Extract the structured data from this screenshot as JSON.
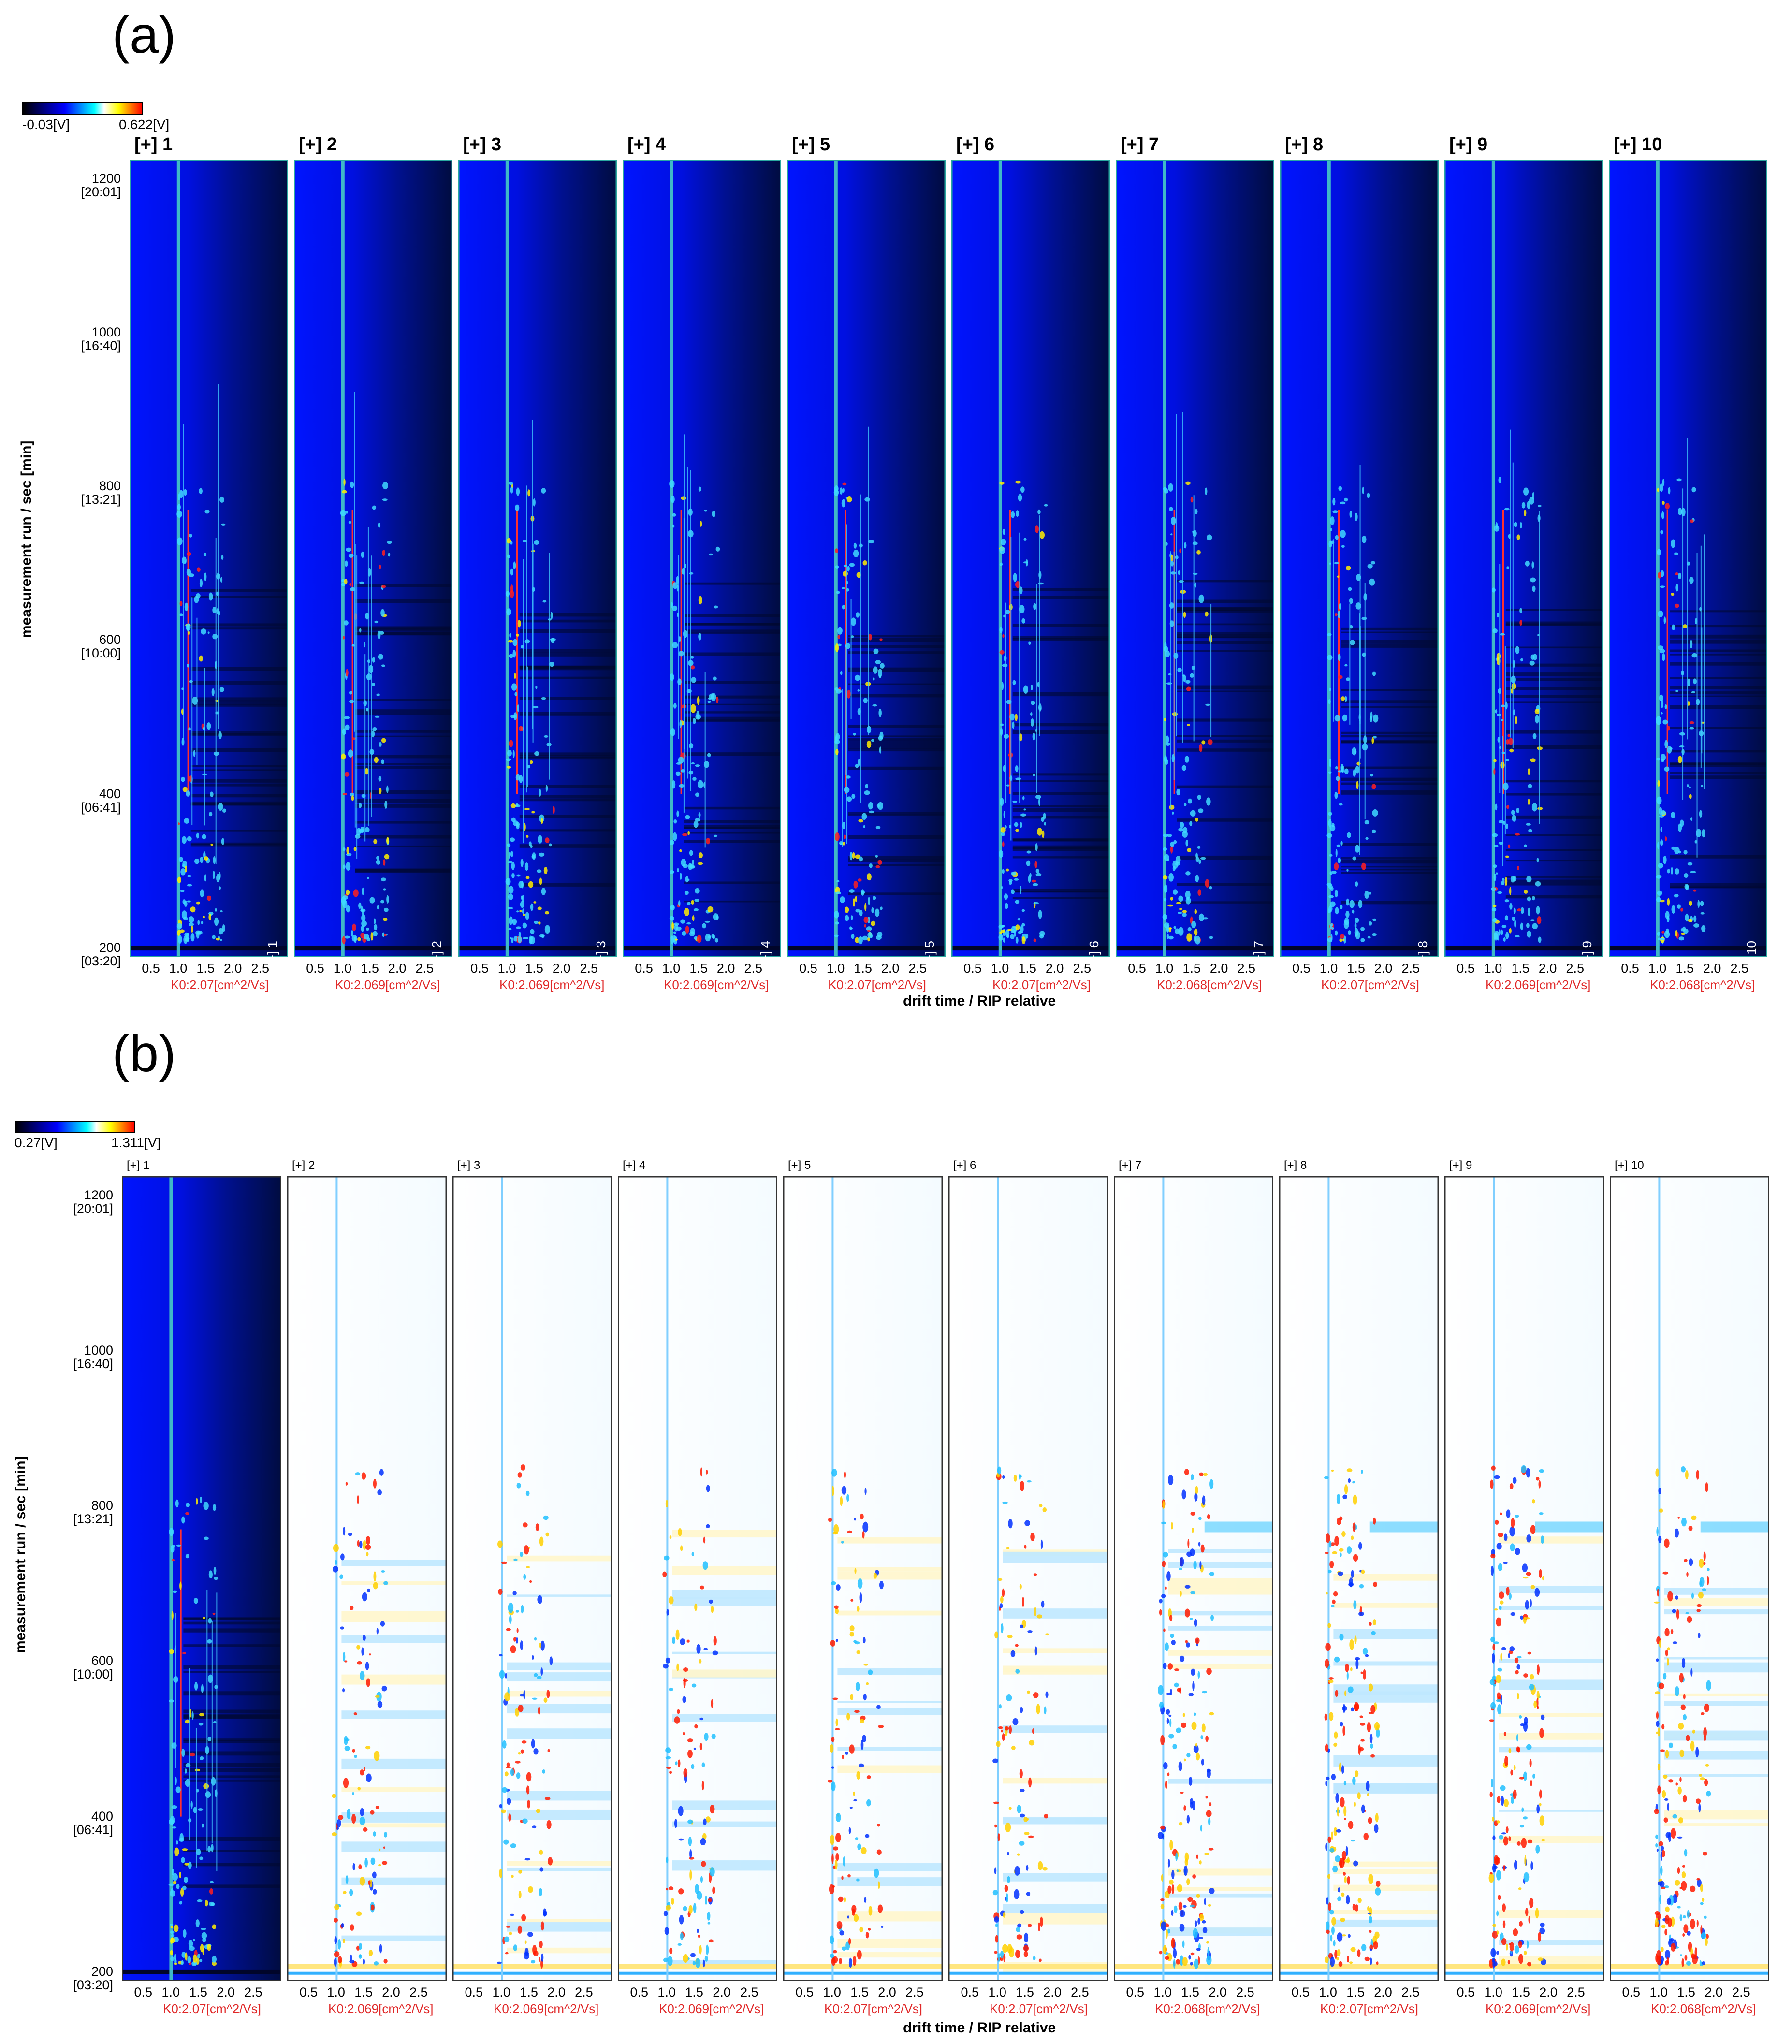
{
  "chart_data": [
    {
      "type": "heatmap",
      "panel_label": "(a)",
      "colorbar": {
        "min_label": "-0.03[V]",
        "max_label": "0.622[V]",
        "colors": [
          "#000000",
          "#0000ff",
          "#00ffff",
          "#ffffff",
          "#ffff00",
          "#ff0000"
        ]
      },
      "ylabel": "measurement run / sec [min]",
      "xlabel": "drift time / RIP relative",
      "yticks": [
        {
          "value": 1200,
          "label": "1200",
          "sub": "[20:01]"
        },
        {
          "value": 1000,
          "label": "1000",
          "sub": "[16:40]"
        },
        {
          "value": 800,
          "label": "800",
          "sub": "[13:21]"
        },
        {
          "value": 600,
          "label": "600",
          "sub": "[10:00]"
        },
        {
          "value": 400,
          "label": "400",
          "sub": "[06:41]"
        },
        {
          "value": 200,
          "label": "200",
          "sub": "[03:20]"
        }
      ],
      "xticks": [
        "0.5",
        "1.0",
        "1.5",
        "2.0",
        "2.5"
      ],
      "ylim": [
        188,
        1225
      ],
      "xlim": [
        0.1,
        3.0
      ],
      "samples": [
        {
          "title": "[+] 1",
          "corner": "[+] 1",
          "k0": "K0:2.07[cm^2/Vs]"
        },
        {
          "title": "[+] 2",
          "corner": "[+] 2",
          "k0": "K0:2.069[cm^2/Vs]"
        },
        {
          "title": "[+] 3",
          "corner": "[+] 3",
          "k0": "K0:2.069[cm^2/Vs]"
        },
        {
          "title": "[+] 4",
          "corner": "[+] 4",
          "k0": "K0:2.069[cm^2/Vs]"
        },
        {
          "title": "[+] 5",
          "corner": "[+] 5",
          "k0": "K0:2.07[cm^2/Vs]"
        },
        {
          "title": "[+] 6",
          "corner": "[+] 6",
          "k0": "K0:2.07[cm^2/Vs]"
        },
        {
          "title": "[+] 7",
          "corner": "[+] 7",
          "k0": "K0:2.068[cm^2/Vs]"
        },
        {
          "title": "[+] 8",
          "corner": "[+] 8",
          "k0": "K0:2.07[cm^2/Vs]"
        },
        {
          "title": "[+] 9",
          "corner": "[+] 9",
          "k0": "K0:2.069[cm^2/Vs]"
        },
        {
          "title": "[+] 10",
          "corner": "[+] 10",
          "k0": "K0:2.068[cm^2/Vs]"
        }
      ]
    },
    {
      "type": "heatmap",
      "panel_label": "(b)",
      "mode": "difference (sample 1 as reference)",
      "colorbar": {
        "min_label": "0.27[V]",
        "max_label": "1.311[V]",
        "colors": [
          "#000000",
          "#0000ff",
          "#00ffff",
          "#ffffff",
          "#ffff00",
          "#ff0000"
        ]
      },
      "ylabel": "measurement run / sec [min]",
      "xlabel": "drift time / RIP relative",
      "yticks": [
        {
          "value": 1200,
          "label": "1200",
          "sub": "[20:01]"
        },
        {
          "value": 1000,
          "label": "1000",
          "sub": "[16:40]"
        },
        {
          "value": 800,
          "label": "800",
          "sub": "[13:21]"
        },
        {
          "value": 600,
          "label": "600",
          "sub": "[10:00]"
        },
        {
          "value": 400,
          "label": "400",
          "sub": "[06:41]"
        },
        {
          "value": 200,
          "label": "200",
          "sub": "[03:20]"
        }
      ],
      "xticks": [
        "0.5",
        "1.0",
        "1.5",
        "2.0",
        "2.5"
      ],
      "ylim": [
        188,
        1225
      ],
      "xlim": [
        0.1,
        3.0
      ],
      "samples": [
        {
          "title": "[+] 1",
          "k0": "K0:2.07[cm^2/Vs]"
        },
        {
          "title": "[+] 2",
          "k0": "K0:2.069[cm^2/Vs]"
        },
        {
          "title": "[+] 3",
          "k0": "K0:2.069[cm^2/Vs]"
        },
        {
          "title": "[+] 4",
          "k0": "K0:2.069[cm^2/Vs]"
        },
        {
          "title": "[+] 5",
          "k0": "K0:2.07[cm^2/Vs]"
        },
        {
          "title": "[+] 6",
          "k0": "K0:2.07[cm^2/Vs]"
        },
        {
          "title": "[+] 7",
          "k0": "K0:2.068[cm^2/Vs]"
        },
        {
          "title": "[+] 8",
          "k0": "K0:2.07[cm^2/Vs]"
        },
        {
          "title": "[+] 9",
          "k0": "K0:2.069[cm^2/Vs]"
        },
        {
          "title": "[+] 10",
          "k0": "K0:2.068[cm^2/Vs]"
        }
      ]
    }
  ]
}
